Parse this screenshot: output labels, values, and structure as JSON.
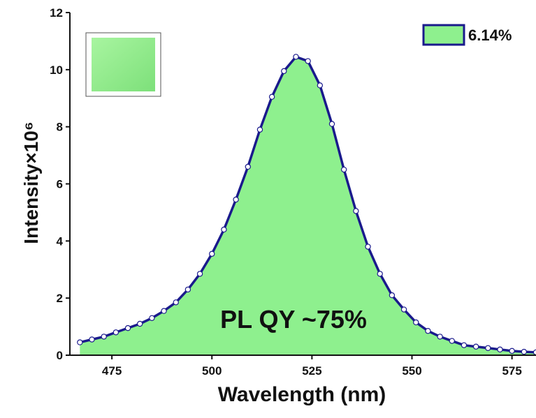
{
  "chart_data": {
    "type": "area",
    "xlabel": "Wavelength (nm)",
    "ylabel": "Intensity×10⁶",
    "annotation": "PL QY ~75%",
    "xlim": [
      464.5,
      581
    ],
    "xticks": [
      475,
      500,
      525,
      550,
      575
    ],
    "ylim": [
      0,
      12
    ],
    "yticks": [
      0,
      2,
      4,
      6,
      8,
      10,
      12
    ],
    "legend_position": "upper right",
    "series": [
      {
        "name": "6.14%",
        "color": "#1a1a8c",
        "fill": "#8ef08e",
        "x": [
          467,
          470,
          473,
          476,
          479,
          482,
          485,
          488,
          491,
          494,
          497,
          500,
          503,
          506,
          509,
          512,
          515,
          518,
          521,
          524,
          527,
          530,
          533,
          536,
          539,
          542,
          545,
          548,
          551,
          554,
          557,
          560,
          563,
          566,
          569,
          572,
          575,
          578,
          581
        ],
        "values": [
          0.45,
          0.55,
          0.65,
          0.8,
          0.95,
          1.1,
          1.3,
          1.55,
          1.85,
          2.3,
          2.85,
          3.55,
          4.4,
          5.45,
          6.6,
          7.9,
          9.05,
          9.95,
          10.45,
          10.3,
          9.45,
          8.1,
          6.5,
          5.05,
          3.8,
          2.85,
          2.1,
          1.6,
          1.15,
          0.85,
          0.65,
          0.5,
          0.35,
          0.3,
          0.25,
          0.2,
          0.15,
          0.12,
          0.1
        ]
      }
    ]
  }
}
